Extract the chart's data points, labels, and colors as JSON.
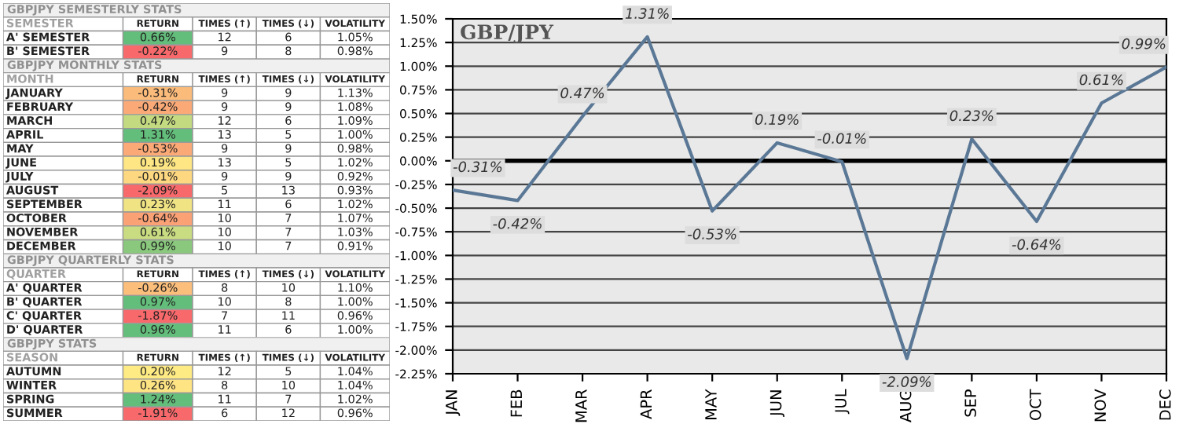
{
  "chart_data": [
    {
      "type": "other",
      "title": "GBPJPY SEMESTERLY STATS",
      "annotations": [
        "SEMESTER",
        "RETURN",
        "TIMES (↑)",
        "TIMES (↓)",
        "VOLATILITY",
        "A' SEMESTER",
        "0.66%",
        "12",
        "6",
        "1.05%",
        "B' SEMESTER",
        "-0.22%",
        "9",
        "8",
        "0.98%"
      ],
      "colors": [
        "#63be7b",
        "#f8696b"
      ]
    },
    {
      "type": "other",
      "title": "GBPJPY MONTHLY STATS",
      "annotations": [
        "MONTH",
        "RETURN",
        "TIMES (↑)",
        "TIMES (↓)",
        "VOLATILITY",
        "JANUARY",
        "-0.31%",
        "9",
        "9",
        "1.13%",
        "FEBRUARY",
        "-0.42%",
        "9",
        "9",
        "1.08%",
        "MARCH",
        "0.47%",
        "12",
        "6",
        "1.09%",
        "APRIL",
        "1.31%",
        "13",
        "5",
        "1.00%",
        "MAY",
        "-0.53%",
        "9",
        "9",
        "0.98%",
        "JUNE",
        "0.19%",
        "13",
        "5",
        "1.02%",
        "JULY",
        "-0.01%",
        "9",
        "9",
        "0.92%",
        "AUGUST",
        "-2.09%",
        "5",
        "13",
        "0.93%",
        "SEPTEMBER",
        "0.23%",
        "11",
        "6",
        "1.02%",
        "OCTOBER",
        "-0.64%",
        "10",
        "7",
        "1.07%",
        "NOVEMBER",
        "0.61%",
        "10",
        "7",
        "1.03%",
        "DECEMBER",
        "0.99%",
        "10",
        "7",
        "0.91%"
      ],
      "colors": [
        "#fbbb7a",
        "#fbaa77",
        "#c3da81",
        "#63be7b",
        "#fbaa77",
        "#fde683",
        "#fed880",
        "#f8696b",
        "#f0e383",
        "#fba176",
        "#c9dc81",
        "#8ac97d"
      ]
    },
    {
      "type": "other",
      "title": "GBPJPY QUARTERLY STATS",
      "annotations": [
        "QUARTER",
        "RETURN",
        "TIMES (↑)",
        "TIMES (↓)",
        "VOLATILITY",
        "A' QUARTER",
        "-0.26%",
        "8",
        "10",
        "1.10%",
        "B' QUARTER",
        "0.97%",
        "10",
        "8",
        "1.00%",
        "C' QUARTER",
        "-1.87%",
        "7",
        "11",
        "0.96%",
        "D' QUARTER",
        "0.96%",
        "11",
        "6",
        "1.00%"
      ],
      "colors": [
        "#fcbf7b",
        "#63be7b",
        "#f8696b",
        "#63be7b"
      ]
    },
    {
      "type": "other",
      "title": "GBPJPY STATS",
      "annotations": [
        "SEASON",
        "RETURN",
        "TIMES (↑)",
        "TIMES (↓)",
        "VOLATILITY",
        "AUTUMN",
        "0.20%",
        "12",
        "5",
        "1.04%",
        "WINTER",
        "0.26%",
        "8",
        "10",
        "1.04%",
        "SPRING",
        "1.24%",
        "11",
        "7",
        "1.02%",
        "SUMMER",
        "-1.91%",
        "6",
        "12",
        "0.96%"
      ],
      "colors": [
        "#ffeb84",
        "#ffe484",
        "#63be7b",
        "#f8696b"
      ]
    },
    {
      "type": "line",
      "title": "GBP/JPY",
      "categories": [
        "JAN",
        "FEB",
        "MAR",
        "APR",
        "MAY",
        "JUN",
        "JUL",
        "AUG",
        "SEP",
        "OCT",
        "NOV",
        "DEC"
      ],
      "series": [
        {
          "color": "#5a7896",
          "values": [
            -0.31,
            -0.42,
            0.47,
            1.31,
            -0.53,
            0.19,
            -0.01,
            -2.09,
            0.23,
            -0.64,
            0.61,
            0.99
          ],
          "value_labels": [
            "-0.31%",
            "-0.42%",
            "0.47%",
            "1.31%",
            "-0.53%",
            "0.19%",
            "-0.01%",
            "-2.09%",
            "0.23%",
            "-0.64%",
            "0.61%",
            "0.99%"
          ]
        }
      ],
      "ylim": [
        -2.25,
        1.5
      ],
      "yticks": [
        {
          "value": -2.25,
          "label": "-2.25%"
        },
        {
          "value": -2.0,
          "label": "-2.00%"
        },
        {
          "value": -1.75,
          "label": "-1.75%"
        },
        {
          "value": -1.5,
          "label": "-1.50%"
        },
        {
          "value": -1.25,
          "label": "-1.25%"
        },
        {
          "value": -1.0,
          "label": "-1.00%"
        },
        {
          "value": -0.75,
          "label": "-0.75%"
        },
        {
          "value": -0.5,
          "label": "-0.50%"
        },
        {
          "value": -0.25,
          "label": "-0.25%"
        },
        {
          "value": 0.0,
          "label": "0.00%"
        },
        {
          "value": 0.25,
          "label": "0.25%"
        },
        {
          "value": 0.5,
          "label": "0.50%"
        },
        {
          "value": 0.75,
          "label": "0.75%"
        },
        {
          "value": 1.0,
          "label": "1.00%"
        },
        {
          "value": 1.25,
          "label": "1.25%"
        },
        {
          "value": 1.5,
          "label": "1.50%"
        }
      ],
      "ref_lines": [
        {
          "axis": "y",
          "value": 0,
          "color": "#000000"
        }
      ],
      "grid": "y",
      "legend": false,
      "marker": "none",
      "line_style": "solid"
    }
  ]
}
